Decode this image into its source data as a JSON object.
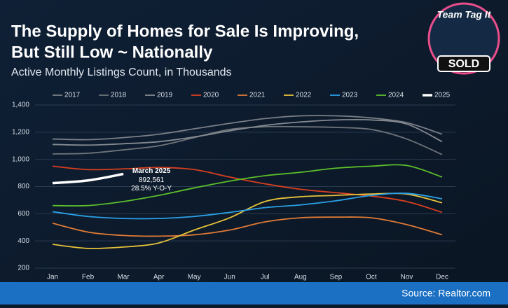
{
  "chart_data": {
    "type": "line",
    "title": "The Supply of Homes for Sale Is Improving,",
    "title_line2": "But Still Low ~ Nationally",
    "subtitle": "Active Monthly Listings Count, in Thousands",
    "source": "Source: Realtor.com",
    "logo": {
      "top": "Team Tag It",
      "bottom": "SOLD"
    },
    "categories": [
      "Jan",
      "Feb",
      "Mar",
      "Apr",
      "May",
      "Jun",
      "Jul",
      "Aug",
      "Sep",
      "Oct",
      "Nov",
      "Dec"
    ],
    "ylim": [
      200,
      1400
    ],
    "yticks": [
      200,
      400,
      600,
      800,
      {
        "value": 1000,
        "label": "1,000"
      },
      {
        "value": 1200,
        "label": "1,200"
      },
      {
        "value": 1400,
        "label": "1,400"
      }
    ],
    "grid": true,
    "series": [
      {
        "name": "2017",
        "color": "#7a7f86",
        "values": [
          1150,
          1145,
          1160,
          1185,
          1225,
          1265,
          1300,
          1320,
          1320,
          1305,
          1270,
          1185
        ]
      },
      {
        "name": "2018",
        "color": "#6e737a",
        "values": [
          1040,
          1045,
          1070,
          1100,
          1160,
          1220,
          1240,
          1240,
          1235,
          1220,
          1150,
          1035
        ]
      },
      {
        "name": "2019",
        "color": "#858a91",
        "values": [
          1110,
          1105,
          1115,
          1130,
          1165,
          1210,
          1250,
          1275,
          1290,
          1290,
          1260,
          1130
        ]
      },
      {
        "name": "2020",
        "color": "#d9401f",
        "values": [
          950,
          925,
          930,
          940,
          925,
          870,
          820,
          780,
          755,
          730,
          690,
          610
        ]
      },
      {
        "name": "2021",
        "color": "#e07a36",
        "values": [
          530,
          465,
          440,
          435,
          445,
          480,
          540,
          570,
          575,
          570,
          520,
          445
        ]
      },
      {
        "name": "2022",
        "color": "#e6c23a",
        "values": [
          375,
          345,
          355,
          385,
          480,
          570,
          690,
          725,
          735,
          745,
          745,
          680
        ]
      },
      {
        "name": "2023",
        "color": "#2aa0e6",
        "values": [
          615,
          580,
          565,
          565,
          580,
          610,
          645,
          665,
          695,
          735,
          750,
          710
        ]
      },
      {
        "name": "2024",
        "color": "#5cbf2a",
        "values": [
          660,
          660,
          690,
          735,
          790,
          840,
          880,
          905,
          935,
          950,
          955,
          870
        ]
      },
      {
        "name": "2025",
        "color": "#ffffff",
        "values": [
          825,
          845,
          892.561,
          null,
          null,
          null,
          null,
          null,
          null,
          null,
          null,
          null
        ]
      }
    ],
    "annotation": {
      "title": "March 2025",
      "value": "892,561",
      "change": "28.5% Y-O-Y"
    }
  }
}
